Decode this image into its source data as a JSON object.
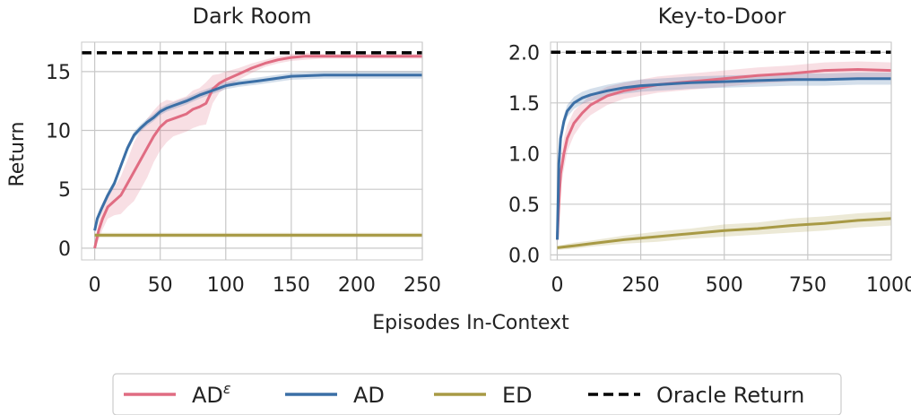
{
  "xlabel": "Episodes In-Context",
  "ylabel": "Return",
  "colors": {
    "ad_eps": "#e06c82",
    "ad": "#3b6fa6",
    "ed": "#a89a45",
    "oracle": "#000000",
    "grid": "#c8c8c8"
  },
  "legend": [
    {
      "key": "ad_eps",
      "label": "AD",
      "sup": "ε",
      "style": "solid"
    },
    {
      "key": "ad",
      "label": "AD",
      "sup": "",
      "style": "solid"
    },
    {
      "key": "ed",
      "label": "ED",
      "sup": "",
      "style": "solid"
    },
    {
      "key": "oracle",
      "label": "Oracle Return",
      "sup": "",
      "style": "dashed"
    }
  ],
  "chart_data": [
    {
      "type": "line",
      "title": "Dark Room",
      "xlim": [
        -10,
        250
      ],
      "ylim": [
        -1,
        17.5
      ],
      "xticks": [
        0,
        50,
        100,
        150,
        200,
        250
      ],
      "yticks": [
        0,
        5,
        10,
        15
      ],
      "oracle": 16.6,
      "series": [
        {
          "name": "AD^ε",
          "key": "ad_eps",
          "x": [
            0,
            3,
            6,
            10,
            15,
            20,
            25,
            30,
            35,
            40,
            45,
            50,
            55,
            60,
            65,
            70,
            75,
            80,
            85,
            90,
            95,
            100,
            110,
            120,
            130,
            140,
            150,
            160,
            175,
            200,
            225,
            250
          ],
          "y": [
            0.0,
            1.5,
            2.5,
            3.5,
            4.0,
            4.5,
            5.5,
            6.5,
            7.5,
            8.5,
            9.5,
            10.3,
            10.8,
            11.0,
            11.2,
            11.4,
            11.8,
            12.0,
            12.3,
            13.5,
            14.0,
            14.3,
            14.8,
            15.3,
            15.7,
            16.0,
            16.2,
            16.3,
            16.3,
            16.3,
            16.3,
            16.3
          ],
          "band": [
            0,
            0.8,
            0.9,
            1.0,
            1.2,
            1.6,
            2.0,
            2.5,
            2.5,
            2.5,
            2.2,
            2.0,
            1.8,
            1.5,
            1.5,
            1.5,
            1.6,
            1.6,
            1.8,
            1.2,
            0.8,
            0.7,
            0.5,
            0.4,
            0.3,
            0.3,
            0.3,
            0.3,
            0.2,
            0.2,
            0.2,
            0.2
          ]
        },
        {
          "name": "AD",
          "key": "ad",
          "x": [
            0,
            2,
            5,
            10,
            15,
            20,
            25,
            30,
            35,
            40,
            45,
            50,
            55,
            60,
            70,
            80,
            90,
            100,
            110,
            125,
            150,
            175,
            200,
            225,
            250
          ],
          "y": [
            1.5,
            2.5,
            3.3,
            4.5,
            5.5,
            7.0,
            8.5,
            9.6,
            10.2,
            10.7,
            11.1,
            11.6,
            11.9,
            12.1,
            12.5,
            13.0,
            13.4,
            13.8,
            14.0,
            14.2,
            14.6,
            14.7,
            14.7,
            14.7,
            14.7
          ],
          "band": [
            0.3,
            0.3,
            0.3,
            0.3,
            0.3,
            0.3,
            0.3,
            0.3,
            0.3,
            0.3,
            0.3,
            0.3,
            0.3,
            0.3,
            0.3,
            0.3,
            0.3,
            0.3,
            0.3,
            0.3,
            0.3,
            0.3,
            0.3,
            0.3,
            0.3
          ]
        },
        {
          "name": "ED",
          "key": "ed",
          "x": [
            0,
            50,
            100,
            150,
            200,
            250
          ],
          "y": [
            1.1,
            1.1,
            1.1,
            1.1,
            1.1,
            1.1
          ],
          "band": [
            0.2,
            0.2,
            0.2,
            0.2,
            0.2,
            0.2
          ]
        }
      ]
    },
    {
      "type": "line",
      "title": "Key-to-Door",
      "xlim": [
        -20,
        1000
      ],
      "ylim": [
        -0.05,
        2.1
      ],
      "xticks": [
        0,
        250,
        500,
        750,
        1000
      ],
      "ytick_labels": [
        "0.0",
        "0.5",
        "1.0",
        "1.5",
        "2.0"
      ],
      "yticks": [
        0,
        0.5,
        1.0,
        1.5,
        2.0
      ],
      "oracle": 2.0,
      "series": [
        {
          "name": "AD^ε",
          "key": "ad_eps",
          "x": [
            0,
            5,
            10,
            20,
            30,
            50,
            75,
            100,
            150,
            200,
            250,
            300,
            400,
            500,
            600,
            700,
            800,
            900,
            1000
          ],
          "y": [
            0.15,
            0.5,
            0.8,
            1.0,
            1.15,
            1.3,
            1.4,
            1.48,
            1.57,
            1.62,
            1.65,
            1.68,
            1.71,
            1.74,
            1.77,
            1.79,
            1.82,
            1.83,
            1.82
          ],
          "band": [
            0.05,
            0.1,
            0.15,
            0.15,
            0.13,
            0.12,
            0.1,
            0.1,
            0.09,
            0.08,
            0.08,
            0.08,
            0.08,
            0.08,
            0.08,
            0.08,
            0.08,
            0.08,
            0.08
          ]
        },
        {
          "name": "AD",
          "key": "ad",
          "x": [
            0,
            5,
            10,
            20,
            30,
            50,
            75,
            100,
            150,
            200,
            250,
            300,
            400,
            500,
            600,
            700,
            800,
            900,
            1000
          ],
          "y": [
            0.15,
            0.9,
            1.15,
            1.32,
            1.42,
            1.5,
            1.55,
            1.58,
            1.62,
            1.65,
            1.67,
            1.68,
            1.7,
            1.71,
            1.72,
            1.73,
            1.73,
            1.74,
            1.74
          ],
          "band": [
            0.05,
            0.06,
            0.06,
            0.06,
            0.06,
            0.06,
            0.06,
            0.06,
            0.06,
            0.06,
            0.06,
            0.06,
            0.06,
            0.06,
            0.06,
            0.06,
            0.06,
            0.06,
            0.06
          ]
        },
        {
          "name": "ED",
          "key": "ed",
          "x": [
            0,
            50,
            100,
            200,
            300,
            400,
            500,
            600,
            700,
            800,
            900,
            1000
          ],
          "y": [
            0.07,
            0.09,
            0.11,
            0.15,
            0.18,
            0.21,
            0.24,
            0.26,
            0.29,
            0.31,
            0.34,
            0.36
          ],
          "band": [
            0.02,
            0.03,
            0.03,
            0.04,
            0.05,
            0.05,
            0.06,
            0.06,
            0.07,
            0.07,
            0.07,
            0.07
          ]
        }
      ]
    }
  ]
}
